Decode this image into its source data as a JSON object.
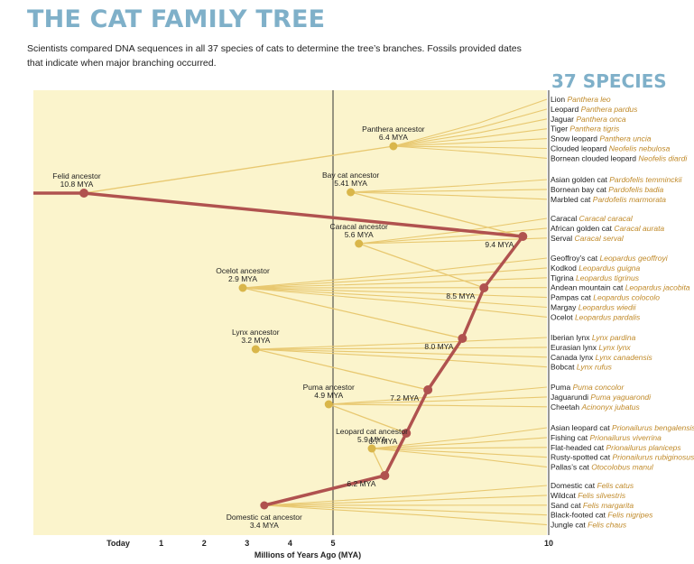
{
  "title": "THE CAT FAMILY TREE",
  "intro": "Scientists compared DNA sequences in all 37 species of cats to determine the tree’s branches. Fossils provided dates that indicate when major branching occurred.",
  "species_heading": "37 SPECIES",
  "axis": {
    "label": "Millions of Years Ago (MYA)",
    "ticks": [
      {
        "value": 10,
        "label": "10"
      },
      {
        "value": 5,
        "label": "5"
      },
      {
        "value": 4,
        "label": "4"
      },
      {
        "value": 3,
        "label": "3"
      },
      {
        "value": 2,
        "label": "2"
      },
      {
        "value": 1,
        "label": "1"
      },
      {
        "value": 0,
        "label": "Today"
      }
    ],
    "bold_gridlines": [
      10,
      5
    ]
  },
  "colors": {
    "background": "#fbf4cc",
    "lineage": "#b0524f",
    "branch": "#e8c870",
    "node": "#d9b64a",
    "title": "#7fb0c9",
    "latin": "#c08a2a"
  },
  "main_nodes": [
    {
      "name": "Felid ancestor",
      "date": "10.8 MYA",
      "mya": 10.8
    },
    {
      "name": "",
      "date": "9.4 MYA",
      "mya": 9.4
    },
    {
      "name": "",
      "date": "8.5 MYA",
      "mya": 8.5
    },
    {
      "name": "",
      "date": "8.0 MYA",
      "mya": 8.0
    },
    {
      "name": "",
      "date": "7.2 MYA",
      "mya": 7.2
    },
    {
      "name": "",
      "date": "6.7 MYA",
      "mya": 6.7
    },
    {
      "name": "",
      "date": "6.2 MYA",
      "mya": 6.2
    }
  ],
  "lineages": [
    {
      "name": "Panthera ancestor",
      "date": "6.4 MYA",
      "mya": 6.4,
      "from": 0,
      "species": [
        {
          "common": "Lion",
          "latin": "Panthera leo"
        },
        {
          "common": "Leopard",
          "latin": "Panthera pardus"
        },
        {
          "common": "Jaguar",
          "latin": "Panthera onca"
        },
        {
          "common": "Tiger",
          "latin": "Panthera tigris"
        },
        {
          "common": "Snow leopard",
          "latin": "Panthera uncia"
        },
        {
          "common": "Clouded leopard",
          "latin": "Neofelis nebulosa"
        },
        {
          "common": "Bornean clouded leopard",
          "latin": "Neofelis diardi"
        }
      ]
    },
    {
      "name": "Bay cat ancestor",
      "date": "5.41 MYA",
      "mya": 5.41,
      "from": 1,
      "species": [
        {
          "common": "Asian golden cat",
          "latin": "Pardofelis temminckii"
        },
        {
          "common": "Bornean bay cat",
          "latin": "Pardofelis badia"
        },
        {
          "common": "Marbled cat",
          "latin": "Pardofelis marmorata"
        }
      ]
    },
    {
      "name": "Caracal ancestor",
      "date": "5.6 MYA",
      "mya": 5.6,
      "from": 2,
      "species": [
        {
          "common": "Caracal",
          "latin": "Caracal caracal"
        },
        {
          "common": "African golden cat",
          "latin": "Caracal aurata"
        },
        {
          "common": "Serval",
          "latin": "Caracal serval"
        }
      ]
    },
    {
      "name": "Ocelot ancestor",
      "date": "2.9 MYA",
      "mya": 2.9,
      "from": 3,
      "species": [
        {
          "common": "Geoffroy’s cat",
          "latin": "Leopardus geoffroyi"
        },
        {
          "common": "Kodkod",
          "latin": "Leopardus guigna"
        },
        {
          "common": "Tigrina",
          "latin": "Leopardus tigrinus"
        },
        {
          "common": "Andean mountain cat",
          "latin": "Leopardus jacobita"
        },
        {
          "common": "Pampas cat",
          "latin": "Leopardus colocolo"
        },
        {
          "common": "Margay",
          "latin": "Leopardus wiedii"
        },
        {
          "common": "Ocelot",
          "latin": "Leopardus pardalis"
        }
      ]
    },
    {
      "name": "Lynx ancestor",
      "date": "3.2 MYA",
      "mya": 3.2,
      "from": 4,
      "species": [
        {
          "common": "Iberian lynx",
          "latin": "Lynx pardina"
        },
        {
          "common": "Eurasian lynx",
          "latin": "Lynx lynx"
        },
        {
          "common": "Canada lynx",
          "latin": "Lynx canadensis"
        },
        {
          "common": "Bobcat",
          "latin": "Lynx rufus"
        }
      ]
    },
    {
      "name": "Puma ancestor",
      "date": "4.9 MYA",
      "mya": 4.9,
      "from": 5,
      "species": [
        {
          "common": "Puma",
          "latin": "Puma concolor"
        },
        {
          "common": "Jaguarundi",
          "latin": "Puma yaguarondi"
        },
        {
          "common": "Cheetah",
          "latin": "Acinonyx jubatus"
        }
      ]
    },
    {
      "name": "Leopard cat ancestor",
      "date": "5.9 MYA",
      "mya": 5.9,
      "from": 6,
      "species": [
        {
          "common": "Asian leopard cat",
          "latin": "Prionailurus bengalensis"
        },
        {
          "common": "Fishing cat",
          "latin": "Prionailurus viverrina"
        },
        {
          "common": "Flat-headed cat",
          "latin": "Prionailurus planiceps"
        },
        {
          "common": "Rusty-spotted cat",
          "latin": "Prionailurus rubiginosus"
        },
        {
          "common": "Pallas’s cat",
          "latin": "Otocolobus manul"
        }
      ]
    },
    {
      "name": "Domestic cat ancestor",
      "date": "3.4 MYA",
      "mya": 3.4,
      "from": 6,
      "main": true,
      "species": [
        {
          "common": "Domestic cat",
          "latin": "Felis catus"
        },
        {
          "common": "Wildcat",
          "latin": "Felis silvestris"
        },
        {
          "common": "Sand cat",
          "latin": "Felis margarita"
        },
        {
          "common": "Black-footed cat",
          "latin": "Felis nigripes"
        },
        {
          "common": "Jungle cat",
          "latin": "Felis chaus"
        }
      ]
    }
  ]
}
